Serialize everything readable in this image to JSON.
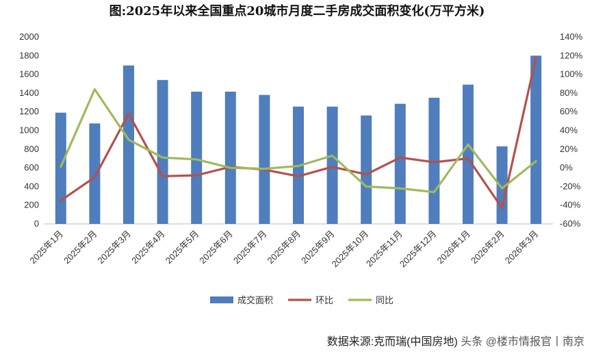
{
  "source": {
    "label": "数据来源:克而瑞(中国房地)",
    "watermark": "头条 @楼市情报官丨南京"
  },
  "chart_data": {
    "type": "bar",
    "title": "图:2025年以来全国重点20城市月度二手房成交面积变化(万平方米)",
    "categories": [
      "2025年1月",
      "2025年2月",
      "2025年3月",
      "2025年4月",
      "2025年5月",
      "2025年6月",
      "2025年7月",
      "2025年8月",
      "2025年9月",
      "2025年10月",
      "2025年11月",
      "2025年12月",
      "2026年1月",
      "2026年2月",
      "2026年3月"
    ],
    "ylim": [
      0,
      2000
    ],
    "y_ticks": [
      0,
      200,
      400,
      600,
      800,
      1000,
      1200,
      1400,
      1600,
      1800,
      2000
    ],
    "y2lim": [
      -60,
      140
    ],
    "y2_ticks": [
      "-60%",
      "-40%",
      "-20%",
      "0%",
      "20%",
      "40%",
      "60%",
      "80%",
      "100%",
      "120%",
      "140%"
    ],
    "legend_position": "bottom",
    "series": [
      {
        "name": "成交面积",
        "type": "bar",
        "axis": "left",
        "color": "#4f7dbd",
        "values": [
          1190,
          1075,
          1695,
          1540,
          1415,
          1415,
          1380,
          1255,
          1255,
          1160,
          1285,
          1350,
          1490,
          830,
          1800
        ]
      },
      {
        "name": "环比",
        "type": "line",
        "axis": "right",
        "color": "#b5504b",
        "values": [
          -35,
          -10,
          58,
          -9,
          -8,
          1,
          -2,
          -9,
          1,
          -7,
          11,
          6,
          10,
          -43,
          118
        ]
      },
      {
        "name": "同比",
        "type": "line",
        "axis": "right",
        "color": "#9fba5b",
        "values": [
          1,
          84,
          30,
          11,
          9,
          0,
          -1,
          2,
          13,
          -20,
          -22,
          -26,
          25,
          -22,
          7
        ]
      }
    ]
  }
}
